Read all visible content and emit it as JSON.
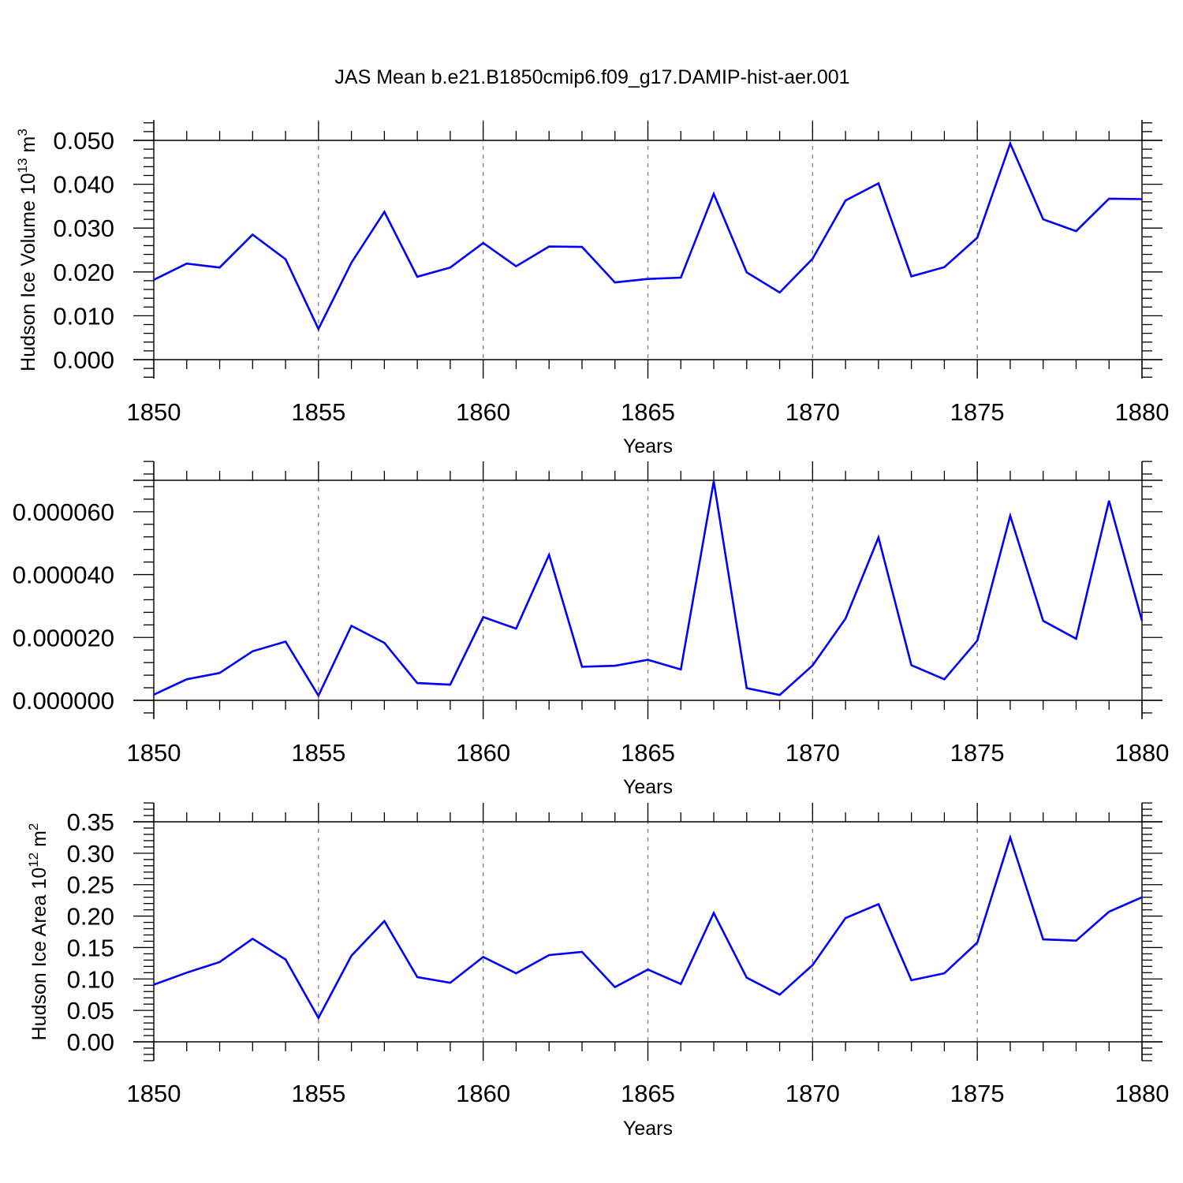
{
  "title": "JAS Mean b.e21.B1850cmip6.f09_g17.DAMIP-hist-aer.001",
  "colors": {
    "line": "#0000ff",
    "axis": "#000000",
    "grid": "#808080"
  },
  "chart_data": [
    {
      "type": "line",
      "ylabel": "Hudson Ice Volume 10",
      "ylabel_sup": "13",
      "ylabel_unit": " m",
      "ylabel_unit_sup": "3",
      "xlabel": "Years",
      "xlim": [
        1850,
        1880
      ],
      "ylim": [
        0.0,
        0.05
      ],
      "yticks": [
        0.0,
        0.01,
        0.02,
        0.03,
        0.04,
        0.05
      ],
      "ytick_labels": [
        "0.000",
        "0.010",
        "0.020",
        "0.030",
        "0.040",
        "0.050"
      ],
      "xticks": [
        1850,
        1855,
        1860,
        1865,
        1870,
        1875,
        1880
      ],
      "xtick_labels": [
        "1850",
        "1855",
        "1860",
        "1865",
        "1870",
        "1875",
        "1880"
      ],
      "x": [
        1850,
        1851,
        1852,
        1853,
        1854,
        1855,
        1856,
        1857,
        1858,
        1859,
        1860,
        1861,
        1862,
        1863,
        1864,
        1865,
        1866,
        1867,
        1868,
        1869,
        1870,
        1871,
        1872,
        1873,
        1874,
        1875,
        1876,
        1877,
        1878,
        1879,
        1880
      ],
      "values": [
        0.0182,
        0.0219,
        0.021,
        0.0285,
        0.0229,
        0.007,
        0.0221,
        0.0337,
        0.0189,
        0.021,
        0.0266,
        0.0213,
        0.0258,
        0.0257,
        0.0176,
        0.0184,
        0.0187,
        0.0378,
        0.0199,
        0.0153,
        0.023,
        0.0363,
        0.0402,
        0.019,
        0.0211,
        0.0278,
        0.0493,
        0.032,
        0.0293,
        0.0367,
        0.0366
      ]
    },
    {
      "type": "line",
      "ylabel": "",
      "xlabel": "Years",
      "xlim": [
        1850,
        1880
      ],
      "ylim": [
        0.0,
        7e-05
      ],
      "yticks": [
        0.0,
        2e-05,
        4e-05,
        6e-05
      ],
      "ytick_labels": [
        "0.000000",
        "0.000020",
        "0.000040",
        "0.000060"
      ],
      "xticks": [
        1850,
        1855,
        1860,
        1865,
        1870,
        1875,
        1880
      ],
      "xtick_labels": [
        "1850",
        "1855",
        "1860",
        "1865",
        "1870",
        "1875",
        "1880"
      ],
      "x": [
        1850,
        1851,
        1852,
        1853,
        1854,
        1855,
        1856,
        1857,
        1858,
        1859,
        1860,
        1861,
        1862,
        1863,
        1864,
        1865,
        1866,
        1867,
        1868,
        1869,
        1870,
        1871,
        1872,
        1873,
        1874,
        1875,
        1876,
        1877,
        1878,
        1879,
        1880
      ],
      "values": [
        1.8e-06,
        6.7e-06,
        8.7e-06,
        1.56e-05,
        1.87e-05,
        1.5e-06,
        2.37e-05,
        1.83e-05,
        5.5e-06,
        5e-06,
        2.65e-05,
        2.28e-05,
        4.63e-05,
        1.07e-05,
        1.1e-05,
        1.29e-05,
        9.8e-06,
        6.97e-05,
        3.9e-06,
        1.7e-06,
        1.11e-05,
        2.6e-05,
        5.18e-05,
        1.12e-05,
        6.7e-06,
        1.9e-05,
        5.87e-05,
        2.53e-05,
        1.96e-05,
        6.35e-05,
        2.53e-05
      ]
    },
    {
      "type": "line",
      "ylabel": "Hudson Ice Area 10",
      "ylabel_sup": "12",
      "ylabel_unit": " m",
      "ylabel_unit_sup": "2",
      "xlabel": "Years",
      "xlim": [
        1850,
        1880
      ],
      "ylim": [
        0.0,
        0.35
      ],
      "yticks": [
        0.0,
        0.05,
        0.1,
        0.15,
        0.2,
        0.25,
        0.3,
        0.35
      ],
      "ytick_labels": [
        "0.00",
        "0.05",
        "0.10",
        "0.15",
        "0.20",
        "0.25",
        "0.30",
        "0.35"
      ],
      "xticks": [
        1850,
        1855,
        1860,
        1865,
        1870,
        1875,
        1880
      ],
      "xtick_labels": [
        "1850",
        "1855",
        "1860",
        "1865",
        "1870",
        "1875",
        "1880"
      ],
      "x": [
        1850,
        1851,
        1852,
        1853,
        1854,
        1855,
        1856,
        1857,
        1858,
        1859,
        1860,
        1861,
        1862,
        1863,
        1864,
        1865,
        1866,
        1867,
        1868,
        1869,
        1870,
        1871,
        1872,
        1873,
        1874,
        1875,
        1876,
        1877,
        1878,
        1879,
        1880
      ],
      "values": [
        0.091,
        0.11,
        0.127,
        0.164,
        0.131,
        0.038,
        0.137,
        0.192,
        0.103,
        0.094,
        0.135,
        0.109,
        0.138,
        0.143,
        0.087,
        0.115,
        0.092,
        0.205,
        0.102,
        0.075,
        0.122,
        0.197,
        0.219,
        0.098,
        0.109,
        0.158,
        0.325,
        0.163,
        0.161,
        0.207,
        0.23
      ]
    }
  ]
}
